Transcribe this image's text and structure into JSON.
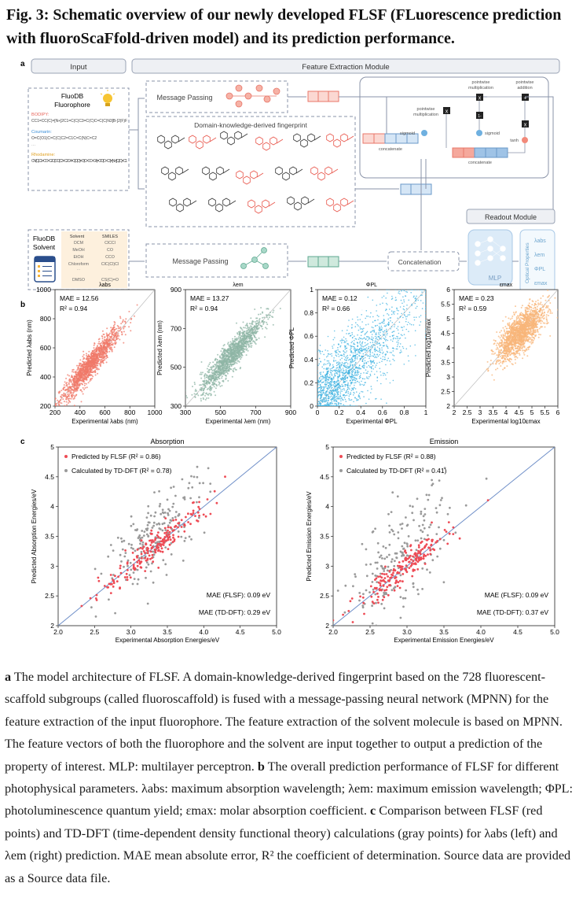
{
  "title": "Fig. 3: Schematic overview of our newly developed FLSF (FLuorescence prediction with fluoroScaFfold-driven model) and its prediction performance.",
  "panel_a": {
    "label": "a",
    "input_header": "Input",
    "feature_header": "Feature Extraction Module",
    "fluorophore_title": "FluoDB Fluorophore",
    "bodipy_label": "BODIPY:",
    "bodipy_smiles": "CC1=CC(C)=[N+]2C1=C(C)C3=C(C)C=C(C)N3[B-]2(F)F",
    "coumarin_label": "Coumarin:",
    "coumarin_smiles": "O=C(O1)C=C(C)C2=C1C=C(N)C=C2",
    "rhodamine_label": "Rhodamine:",
    "rhodamine_smiles": "CN(C)C1=CC=C2C(OC(C3=C2C4=C(C(O)=O)C=CC=C4)=C/C(C=C3)=[N+](C)/C)=C1",
    "message_passing": "Message Passing",
    "fingerprint_label": "Domain-knowledge-derived fingerprint",
    "pointwise_mult": "pointwise multiplication",
    "pointwise_add": "pointwise addition",
    "sigmoid": "sigmoid",
    "tanh": "tanh",
    "concatenate": "concatenate",
    "readout_header": "Readout Module",
    "solvent_title": "FluoDB Solvent",
    "solvent_col": "Solvent",
    "smiles_col": "SMILES",
    "solvents": [
      {
        "name": "DCM",
        "smiles": "ClCCl"
      },
      {
        "name": "MeOH",
        "smiles": "CO"
      },
      {
        "name": "EtOH",
        "smiles": "CCO"
      },
      {
        "name": "Chloroform",
        "smiles": "ClC(Cl)Cl"
      },
      {
        "name": "DMSO",
        "smiles": "CS(C)=O"
      }
    ],
    "concatenation": "Concatenation",
    "mlp": "MLP",
    "optical_properties": "Optical Properties",
    "outputs": [
      "λabs",
      "λem",
      "ΦPL",
      "εmax"
    ]
  },
  "panel_b_label": "b",
  "panel_c_label": "c",
  "chart_data": [
    {
      "type": "scatter",
      "title": "λabs",
      "xlabel": "Experimental λabs (nm)",
      "ylabel": "Predicted λabs (nm)",
      "xlim": [
        200,
        1000
      ],
      "ylim": [
        200,
        1000
      ],
      "xticks": [
        "200",
        "400",
        "600",
        "800",
        "1000"
      ],
      "yticks": [
        "200",
        "400",
        "600",
        "800",
        "1000"
      ],
      "mae": "MAE = 12.56",
      "r2": "R² = 0.94",
      "color": "#f07a6a",
      "n": 1400,
      "spread": 45
    },
    {
      "type": "scatter",
      "title": "λem",
      "xlabel": "Experimental λem (nm)",
      "ylabel": "Predicted λem (nm)",
      "xlim": [
        300,
        900
      ],
      "ylim": [
        300,
        900
      ],
      "xticks": [
        "300",
        "500",
        "700",
        "900"
      ],
      "yticks": [
        "300",
        "500",
        "700",
        "900"
      ],
      "mae": "MAE = 13.27",
      "r2": "R² = 0.94",
      "color": "#8fb5a6",
      "n": 1400,
      "spread": 38
    },
    {
      "type": "scatter",
      "title": "ΦPL",
      "xlabel": "Experimental ΦPL",
      "ylabel": "Predicted ΦPL",
      "xlim": [
        0,
        1
      ],
      "ylim": [
        0,
        1
      ],
      "xticks": [
        "0",
        "0.2",
        "0.4",
        "0.6",
        "0.8",
        "1"
      ],
      "yticks": [
        "0",
        "0.2",
        "0.4",
        "0.6",
        "0.8",
        "1"
      ],
      "mae": "MAE = 0.12",
      "r2": "R² = 0.66",
      "color": "#3ab0e0",
      "n": 1800,
      "spread": 0.17
    },
    {
      "type": "scatter",
      "title": "εmax",
      "xlabel": "Experimental log10εmax",
      "ylabel": "Predicted log10εmax",
      "xlim": [
        2,
        6
      ],
      "ylim": [
        2,
        6
      ],
      "xticks": [
        "2",
        "2.5",
        "3",
        "3.5",
        "4",
        "4.5",
        "5",
        "5.5",
        "6"
      ],
      "yticks": [
        "2",
        "2.5",
        "3",
        "3.5",
        "4",
        "4.5",
        "5",
        "5.5",
        "6"
      ],
      "mae": "MAE = 0.23",
      "r2": "R² = 0.59",
      "color": "#f8b67a",
      "n": 1600,
      "spread": 0.32
    },
    {
      "type": "scatter",
      "title": "Absorption",
      "xlabel": "Experimental Absorption Energies/eV",
      "ylabel": "Predicted Absorption Energies/eV",
      "xlim": [
        2.0,
        5.0
      ],
      "ylim": [
        2,
        5
      ],
      "xticks": [
        "2.0",
        "2.5",
        "3.0",
        "3.5",
        "4.0",
        "4.5",
        "5.0"
      ],
      "yticks": [
        "2",
        "2.5",
        "3",
        "3.5",
        "4",
        "4.5",
        "5"
      ],
      "legend": [
        "Predicted by FLSF (R² = 0.86)",
        "Calculated by TD-DFT (R² = 0.78)"
      ],
      "mae_flsf": "MAE (FLSF): 0.09 eV",
      "mae_tddft": "MAE (TD-DFT): 0.29 eV",
      "flsf_color": "#ee4b55",
      "tddft_color": "#9a9a9a",
      "n": 200
    },
    {
      "type": "scatter",
      "title": "Emission",
      "xlabel": "Experimental Emission Energies/eV",
      "ylabel": "Predicted Emission Energies/eV",
      "xlim": [
        2.0,
        5.0
      ],
      "ylim": [
        2,
        5
      ],
      "xticks": [
        "2.0",
        "2.5",
        "3.0",
        "3.5",
        "4.0",
        "4.5",
        "5.0"
      ],
      "yticks": [
        "2",
        "2.5",
        "3",
        "3.5",
        "4",
        "4.5",
        "5"
      ],
      "legend": [
        "Predicted by FLSF (R² = 0.88)",
        "Calculated by TD-DFT (R² = 0.41)"
      ],
      "mae_flsf": "MAE (FLSF): 0.09 eV",
      "mae_tddft": "MAE (TD-DFT): 0.37 eV",
      "flsf_color": "#ee4b55",
      "tddft_color": "#9a9a9a",
      "n": 200
    }
  ],
  "caption": {
    "a_label": "a",
    "a_text": " The model architecture of FLSF. A domain-knowledge-derived fingerprint based on the 728 fluorescent-scaffold subgroups (called fluoroscaffold) is fused with a message-passing neural network (MPNN) for the feature extraction of the input fluorophore. The feature extraction of the solvent molecule is based on MPNN. The feature vectors of both the fluorophore and the solvent are input together to output a prediction of the property of interest. MLP: multilayer perceptron. ",
    "b_label": "b",
    "b_text": " The overall prediction performance of FLSF for different photophysical parameters. ",
    "b_def1": "λabs: maximum absorption wavelength; ",
    "b_def2": "λem: maximum emission wavelength; ",
    "b_def3": "ΦPL: photoluminescence quantum yield; ",
    "b_def4": "εmax: molar absorption coefficient. ",
    "c_label": "c",
    "c_text": " Comparison between FLSF (red points) and TD-DFT (time-dependent density functional theory) calculations (gray points) for λabs (left) and λem (right) prediction. MAE mean absolute error, R² the coefficient of determination. Source data are provided as a Source data file."
  }
}
